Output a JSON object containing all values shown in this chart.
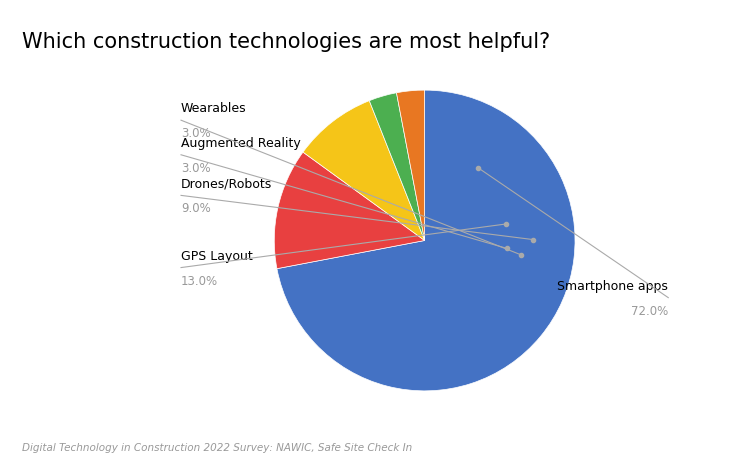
{
  "title": "Which construction technologies are most helpful?",
  "title_fontsize": 15,
  "footnote": "Digital Technology in Construction 2022 Survey: NAWIC, Safe Site Check In",
  "slices": [
    {
      "label": "Smartphone apps",
      "value": 72.0,
      "color": "#4472C4"
    },
    {
      "label": "GPS Layout",
      "value": 13.0,
      "color": "#E84040"
    },
    {
      "label": "Drones/Robots",
      "value": 9.0,
      "color": "#F5C518"
    },
    {
      "label": "Augmented Reality",
      "value": 3.0,
      "color": "#4CAF50"
    },
    {
      "label": "Wearables",
      "value": 3.0,
      "color": "#E87722"
    }
  ],
  "label_color": "#999999",
  "line_color": "#aaaaaa",
  "background_color": "#ffffff",
  "figsize": [
    7.45,
    4.6
  ],
  "dpi": 100
}
